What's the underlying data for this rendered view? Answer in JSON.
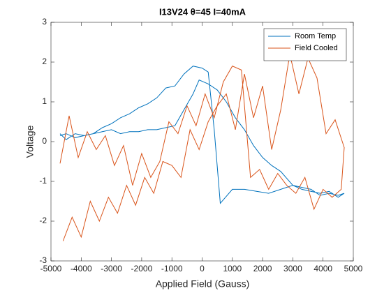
{
  "chart_data": {
    "type": "line",
    "title": "I13V24 θ=45 I=40mA",
    "x_label": "Applied Field (Gauss)",
    "y_label": "Voltage",
    "xlim": [
      -5000,
      5000
    ],
    "xticks": [
      -5000,
      -4000,
      -3000,
      -2000,
      -1000,
      0,
      1000,
      2000,
      3000,
      4000,
      5000
    ],
    "ylim": [
      -3,
      3
    ],
    "yticks": [
      -3,
      -2,
      -1,
      0,
      1,
      2,
      3
    ],
    "grid": false,
    "legend": "top-right",
    "series": [
      {
        "name": "Room Temp",
        "color": "#0072bd",
        "x": [
          -4700,
          -4500,
          -4200,
          -3900,
          -3600,
          -3300,
          -3000,
          -2700,
          -2400,
          -2100,
          -1800,
          -1500,
          -1200,
          -900,
          -600,
          -300,
          -100,
          200,
          500,
          800,
          1100,
          1400,
          1700,
          2000,
          2300,
          2600,
          3000,
          3300,
          3600,
          3900,
          4200,
          4500,
          4700,
          4500,
          4200,
          3900,
          3600,
          3300,
          3000,
          2600,
          2200,
          1800,
          1400,
          1000,
          600,
          400,
          200,
          0,
          -300,
          -600,
          -900,
          -1200,
          -1500,
          -1800,
          -2100,
          -2400,
          -2700,
          -3000,
          -3300,
          -3600,
          -3900,
          -4200,
          -4500,
          -4700
        ],
        "values": [
          0.2,
          0.05,
          0.2,
          0.15,
          0.2,
          0.25,
          0.3,
          0.2,
          0.25,
          0.25,
          0.3,
          0.3,
          0.35,
          0.4,
          0.8,
          1.2,
          1.55,
          1.45,
          1.3,
          1.0,
          0.6,
          0.3,
          -0.1,
          -0.4,
          -0.6,
          -0.75,
          -1.1,
          -1.2,
          -1.25,
          -1.3,
          -1.25,
          -1.4,
          -1.3,
          -1.35,
          -1.3,
          -1.35,
          -1.2,
          -1.15,
          -1.1,
          -1.2,
          -1.3,
          -1.25,
          -1.2,
          -1.2,
          -1.55,
          0.3,
          1.75,
          1.85,
          1.9,
          1.7,
          1.4,
          1.35,
          1.1,
          0.95,
          0.85,
          0.7,
          0.6,
          0.45,
          0.35,
          0.2,
          0.15,
          0.1,
          0.2,
          0.15
        ]
      },
      {
        "name": "Field Cooled",
        "color": "#d95319",
        "x": [
          -4700,
          -4400,
          -4100,
          -3800,
          -3500,
          -3200,
          -2900,
          -2600,
          -2300,
          -2000,
          -1700,
          -1400,
          -1100,
          -800,
          -500,
          -200,
          100,
          400,
          700,
          1000,
          1300,
          1600,
          1900,
          2200,
          2500,
          2800,
          3100,
          3400,
          3700,
          4000,
          4300,
          4600,
          4700,
          4400,
          4100,
          3800,
          3500,
          3200,
          2900,
          2600,
          2300,
          2000,
          1700,
          1400,
          1100,
          800,
          500,
          200,
          -100,
          -400,
          -700,
          -1000,
          -1300,
          -1600,
          -1900,
          -2200,
          -2500,
          -2800,
          -3100,
          -3400,
          -3700,
          -4000,
          -4300,
          -4600
        ],
        "values": [
          -0.55,
          0.65,
          -0.4,
          0.25,
          -0.2,
          0.15,
          -0.6,
          -0.1,
          -1.1,
          -0.3,
          -0.9,
          -0.5,
          0.5,
          0.2,
          0.9,
          0.4,
          1.2,
          0.6,
          1.5,
          1.9,
          1.8,
          -0.9,
          -0.7,
          -1.2,
          -0.8,
          -1.1,
          -1.3,
          -0.9,
          -1.7,
          -1.2,
          -1.4,
          -1.2,
          -0.15,
          0.55,
          0.2,
          1.6,
          2.1,
          1.2,
          2.2,
          0.8,
          -0.2,
          1.4,
          0.6,
          1.7,
          0.3,
          1.2,
          0.9,
          0.5,
          -0.2,
          0.3,
          -0.9,
          -0.6,
          -0.5,
          -1.3,
          -0.9,
          -1.6,
          -1.1,
          -1.8,
          -1.4,
          -2.0,
          -1.5,
          -2.4,
          -1.9,
          -2.5
        ]
      }
    ]
  }
}
